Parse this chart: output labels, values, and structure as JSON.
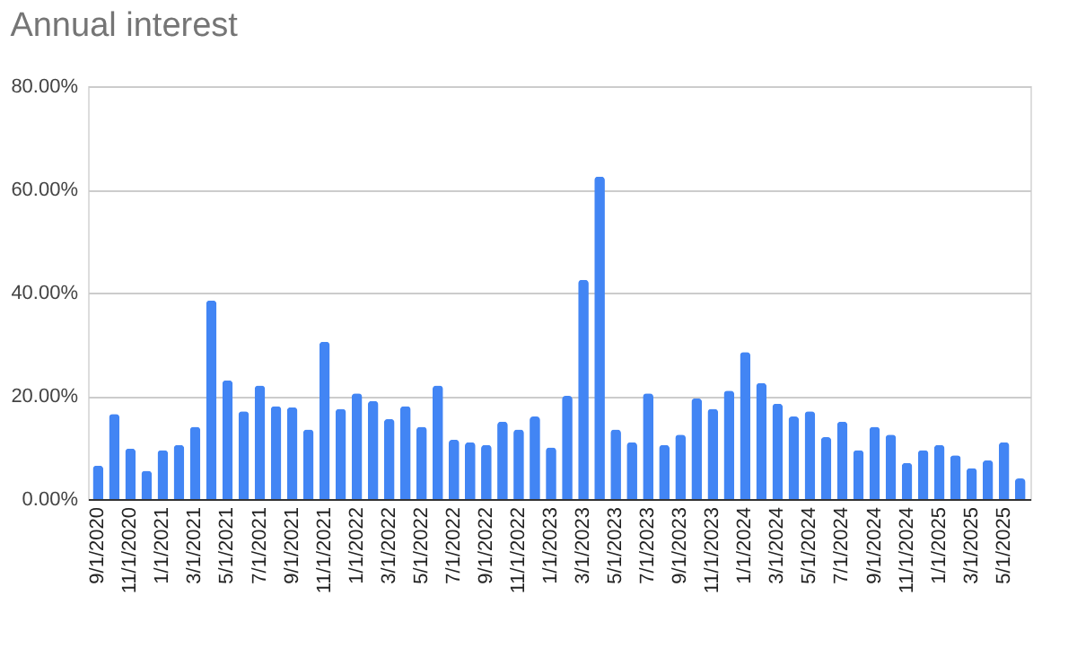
{
  "chart_data": {
    "type": "bar",
    "title": "Annual interest",
    "categories": [
      "9/1/2020",
      null,
      "11/1/2020",
      null,
      "1/1/2021",
      null,
      "3/1/2021",
      null,
      "5/1/2021",
      null,
      "7/1/2021",
      null,
      "9/1/2021",
      null,
      "11/1/2021",
      null,
      "1/1/2022",
      null,
      "3/1/2022",
      null,
      "5/1/2022",
      null,
      "7/1/2022",
      null,
      "9/1/2022",
      null,
      "11/1/2022",
      null,
      "1/1/2023",
      null,
      "3/1/2023",
      null,
      "5/1/2023",
      null,
      "7/1/2023",
      null,
      "9/1/2023",
      null,
      "11/1/2023",
      null,
      "1/1/2024",
      null,
      "3/1/2024",
      null,
      "5/1/2024",
      null,
      "7/1/2024",
      null,
      "9/1/2024",
      null,
      "11/1/2024",
      null,
      "1/1/2025",
      null,
      "3/1/2025",
      null,
      "5/1/2025",
      null
    ],
    "values": [
      6.5,
      16.5,
      9.8,
      5.5,
      9.5,
      10.5,
      14,
      38.5,
      23,
      17,
      22,
      18,
      17.8,
      13.5,
      30.5,
      17.5,
      20.5,
      19,
      15.5,
      18,
      14,
      22,
      11.5,
      11,
      10.5,
      15,
      13.5,
      16,
      10,
      20,
      42.5,
      62.5,
      13.5,
      11,
      20.5,
      10.5,
      12.5,
      19.5,
      17.5,
      21,
      28.5,
      22.5,
      18.5,
      16,
      17,
      12,
      15,
      9.5,
      14,
      12.5,
      7,
      9.5,
      10.5,
      8.5,
      6,
      7.5,
      11,
      4
    ],
    "color": "#4285f4",
    "ylim": [
      0,
      80
    ],
    "yticks": [
      {
        "value": 0,
        "label": "0.00%"
      },
      {
        "value": 20,
        "label": "20.00%"
      },
      {
        "value": 40,
        "label": "40.00%"
      },
      {
        "value": 60,
        "label": "60.00%"
      },
      {
        "value": 80,
        "label": "80.00%"
      }
    ],
    "grid": "y"
  }
}
